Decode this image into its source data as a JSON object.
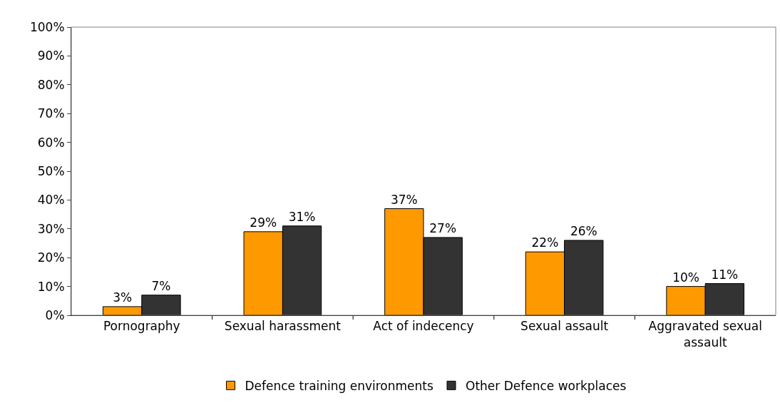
{
  "chart_data": {
    "type": "bar",
    "categories": [
      "Pornography",
      "Sexual harassment",
      "Act of indecency",
      "Sexual assault",
      "Aggravated sexual assault"
    ],
    "series": [
      {
        "name": "Defence training environments",
        "color": "#ff9900",
        "values": [
          3,
          29,
          37,
          22,
          10
        ],
        "value_labels": [
          "3%",
          "29%",
          "37%",
          "22%",
          "10%"
        ]
      },
      {
        "name": "Other Defence workplaces",
        "color": "#333333",
        "values": [
          7,
          31,
          27,
          26,
          11
        ],
        "value_labels": [
          "7%",
          "31%",
          "27%",
          "26%",
          "11%"
        ]
      }
    ],
    "ylim": [
      0,
      100
    ],
    "yticks": [
      {
        "value": 0,
        "label": "0%"
      },
      {
        "value": 10,
        "label": "10%"
      },
      {
        "value": 20,
        "label": "20%"
      },
      {
        "value": 30,
        "label": "30%"
      },
      {
        "value": 40,
        "label": "40%"
      },
      {
        "value": 50,
        "label": "50%"
      },
      {
        "value": 60,
        "label": "60%"
      },
      {
        "value": 70,
        "label": "70%"
      },
      {
        "value": 80,
        "label": "80%"
      },
      {
        "value": 90,
        "label": "90%"
      },
      {
        "value": 100,
        "label": "100%"
      }
    ],
    "grid": false,
    "legend": "bottom"
  }
}
